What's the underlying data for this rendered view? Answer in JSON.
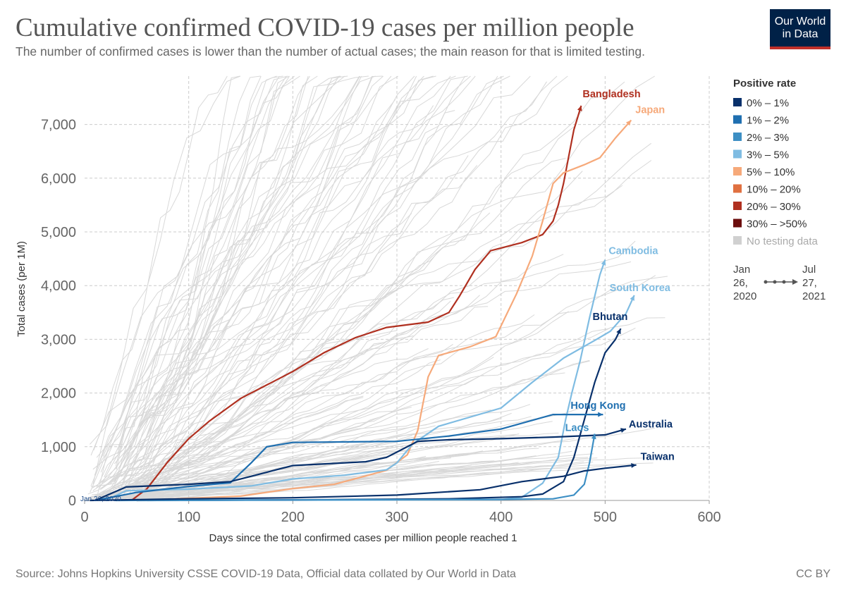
{
  "header": {
    "title": "Cumulative confirmed COVID-19 cases per million people",
    "subtitle": "The number of confirmed cases is lower than the number of actual cases; the main reason for that is limited testing.",
    "logo_line1": "Our World",
    "logo_line2": "in Data"
  },
  "footer": {
    "source": "Source: Johns Hopkins University CSSE COVID-19 Data, Official data collated by Our World in Data",
    "license": "CC BY"
  },
  "legend": {
    "title": "Positive rate",
    "items": [
      {
        "label": "0% – 1%",
        "color": "#08306b"
      },
      {
        "label": "1% – 2%",
        "color": "#1f6fb0"
      },
      {
        "label": "2% – 3%",
        "color": "#3d8fc4"
      },
      {
        "label": "3% – 5%",
        "color": "#7fbce2"
      },
      {
        "label": "5% – 10%",
        "color": "#f6a97a"
      },
      {
        "label": "10% – 20%",
        "color": "#e07040"
      },
      {
        "label": "20% – 30%",
        "color": "#b03020"
      },
      {
        "label": "30% – >50%",
        "color": "#6b0d0d"
      },
      {
        "label": "No testing data",
        "color": "#d0d0d0"
      }
    ],
    "timeline": {
      "start_month": "Jan",
      "start_day": "26,",
      "start_year": "2020",
      "end_month": "Jul",
      "end_day": "27,",
      "end_year": "2021"
    }
  },
  "chart_data": {
    "type": "line",
    "title": "Cumulative confirmed COVID-19 cases per million people",
    "xlabel": "Days since the total confirmed cases per million people reached 1",
    "ylabel": "Total cases (per 1M)",
    "xlim": [
      0,
      600
    ],
    "ylim": [
      0,
      7900
    ],
    "x_ticks": [
      0,
      100,
      200,
      300,
      400,
      500,
      600
    ],
    "y_ticks": [
      0,
      1000,
      2000,
      3000,
      4000,
      5000,
      6000,
      7000
    ],
    "x_tick_labels": [
      "0",
      "100",
      "200",
      "300",
      "400",
      "500",
      "600"
    ],
    "y_tick_labels": [
      "0",
      "1,000",
      "2,000",
      "3,000",
      "4,000",
      "5,000",
      "6,000",
      "7,000"
    ],
    "grid": true,
    "start_annotation": "Jan 26, 2020",
    "series": [
      {
        "name": "Bangladesh",
        "color": "#b03020",
        "points": [
          [
            45,
            0
          ],
          [
            60,
            220
          ],
          [
            80,
            720
          ],
          [
            100,
            1150
          ],
          [
            120,
            1480
          ],
          [
            150,
            1900
          ],
          [
            200,
            2400
          ],
          [
            230,
            2750
          ],
          [
            260,
            3030
          ],
          [
            290,
            3220
          ],
          [
            330,
            3320
          ],
          [
            350,
            3500
          ],
          [
            360,
            3800
          ],
          [
            375,
            4300
          ],
          [
            390,
            4650
          ],
          [
            420,
            4800
          ],
          [
            440,
            4950
          ],
          [
            450,
            5200
          ],
          [
            455,
            5500
          ],
          [
            460,
            5900
          ],
          [
            465,
            6400
          ],
          [
            470,
            6900
          ],
          [
            477,
            7350
          ]
        ]
      },
      {
        "name": "Japan",
        "color": "#f6a97a",
        "points": [
          [
            50,
            0
          ],
          [
            150,
            80
          ],
          [
            200,
            220
          ],
          [
            240,
            300
          ],
          [
            290,
            560
          ],
          [
            310,
            850
          ],
          [
            320,
            1300
          ],
          [
            325,
            1800
          ],
          [
            330,
            2300
          ],
          [
            340,
            2700
          ],
          [
            370,
            2860
          ],
          [
            395,
            3050
          ],
          [
            415,
            3850
          ],
          [
            430,
            4550
          ],
          [
            440,
            5200
          ],
          [
            450,
            5900
          ],
          [
            460,
            6100
          ],
          [
            480,
            6250
          ],
          [
            495,
            6380
          ],
          [
            510,
            6750
          ],
          [
            525,
            7080
          ]
        ]
      },
      {
        "name": "Cambodia",
        "color": "#7fbce2",
        "points": [
          [
            60,
            0
          ],
          [
            400,
            15
          ],
          [
            420,
            60
          ],
          [
            440,
            320
          ],
          [
            455,
            800
          ],
          [
            462,
            1500
          ],
          [
            468,
            2000
          ],
          [
            476,
            2600
          ],
          [
            485,
            3400
          ],
          [
            495,
            4200
          ],
          [
            500,
            4480
          ]
        ]
      },
      {
        "name": "South Korea",
        "color": "#7fbce2",
        "points": [
          [
            20,
            0
          ],
          [
            40,
            180
          ],
          [
            100,
            210
          ],
          [
            160,
            270
          ],
          [
            200,
            400
          ],
          [
            250,
            470
          ],
          [
            290,
            570
          ],
          [
            300,
            700
          ],
          [
            315,
            1050
          ],
          [
            340,
            1380
          ],
          [
            400,
            1720
          ],
          [
            430,
            2200
          ],
          [
            460,
            2650
          ],
          [
            490,
            2980
          ],
          [
            505,
            3150
          ],
          [
            520,
            3480
          ],
          [
            528,
            3820
          ]
        ]
      },
      {
        "name": "Bhutan",
        "color": "#08306b",
        "points": [
          [
            50,
            0
          ],
          [
            200,
            10
          ],
          [
            350,
            30
          ],
          [
            420,
            70
          ],
          [
            440,
            120
          ],
          [
            460,
            350
          ],
          [
            470,
            800
          ],
          [
            480,
            1500
          ],
          [
            490,
            2200
          ],
          [
            500,
            2750
          ],
          [
            510,
            3000
          ],
          [
            515,
            3200
          ]
        ]
      },
      {
        "name": "Hong Kong",
        "color": "#1f6fb0",
        "points": [
          [
            10,
            0
          ],
          [
            50,
            150
          ],
          [
            100,
            260
          ],
          [
            140,
            330
          ],
          [
            160,
            700
          ],
          [
            175,
            1000
          ],
          [
            200,
            1080
          ],
          [
            300,
            1100
          ],
          [
            350,
            1200
          ],
          [
            400,
            1330
          ],
          [
            450,
            1600
          ],
          [
            498,
            1600
          ]
        ]
      },
      {
        "name": "Australia",
        "color": "#08306b",
        "points": [
          [
            10,
            0
          ],
          [
            40,
            250
          ],
          [
            100,
            300
          ],
          [
            140,
            350
          ],
          [
            180,
            550
          ],
          [
            200,
            650
          ],
          [
            270,
            720
          ],
          [
            290,
            800
          ],
          [
            320,
            1100
          ],
          [
            350,
            1130
          ],
          [
            400,
            1150
          ],
          [
            450,
            1180
          ],
          [
            500,
            1220
          ],
          [
            520,
            1330
          ]
        ]
      },
      {
        "name": "Laos",
        "color": "#3d8fc4",
        "points": [
          [
            30,
            0
          ],
          [
            200,
            10
          ],
          [
            400,
            20
          ],
          [
            450,
            30
          ],
          [
            470,
            100
          ],
          [
            480,
            300
          ],
          [
            485,
            700
          ],
          [
            490,
            1240
          ]
        ]
      },
      {
        "name": "Taiwan",
        "color": "#08306b",
        "points": [
          [
            5,
            0
          ],
          [
            100,
            30
          ],
          [
            200,
            50
          ],
          [
            300,
            100
          ],
          [
            380,
            200
          ],
          [
            420,
            350
          ],
          [
            460,
            450
          ],
          [
            480,
            550
          ],
          [
            500,
            600
          ],
          [
            530,
            660
          ]
        ]
      }
    ]
  }
}
